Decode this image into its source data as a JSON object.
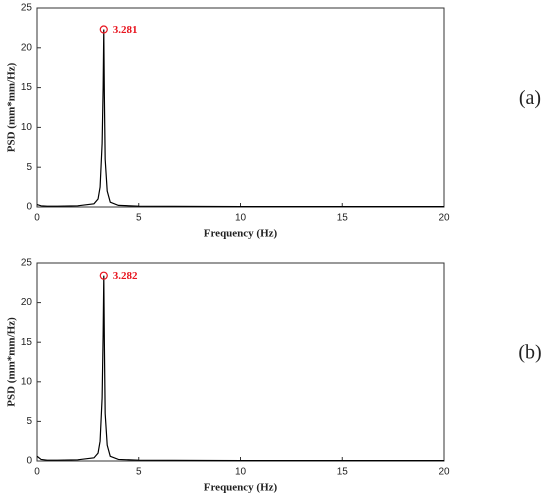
{
  "chart_data": [
    {
      "type": "line",
      "panel_label": "(a)",
      "xlabel": "Frequency (Hz)",
      "ylabel": "PSD (mm*mm/Hz)",
      "x": [
        0,
        0.2,
        0.5,
        1,
        2,
        2.8,
        3.0,
        3.1,
        3.2,
        3.25,
        3.281,
        3.31,
        3.35,
        3.45,
        3.6,
        4,
        5,
        10,
        15,
        20
      ],
      "values": [
        0.3,
        0.15,
        0.1,
        0.1,
        0.15,
        0.4,
        1,
        2.5,
        8,
        15,
        22.3,
        14,
        6,
        2,
        0.6,
        0.2,
        0.1,
        0.05,
        0.05,
        0.05
      ],
      "color": "#000000",
      "annotation": {
        "x": 3.281,
        "y": 22.3,
        "text": "3.281",
        "color": "#e8141e"
      },
      "xlim": [
        0,
        20
      ],
      "xticks": [
        0,
        5,
        10,
        15,
        20
      ],
      "ylim": [
        0,
        25
      ],
      "yticks": [
        0,
        5,
        10,
        15,
        20,
        25
      ]
    },
    {
      "type": "line",
      "panel_label": "(b)",
      "xlabel": "Frequency (Hz)",
      "ylabel": "PSD (mm*mm/Hz)",
      "x": [
        0,
        0.2,
        0.5,
        1,
        2,
        2.8,
        3.0,
        3.1,
        3.2,
        3.25,
        3.282,
        3.31,
        3.35,
        3.45,
        3.6,
        4,
        5,
        10,
        15,
        20
      ],
      "values": [
        0.6,
        0.2,
        0.1,
        0.1,
        0.15,
        0.4,
        1,
        2.5,
        8,
        16,
        23.4,
        15,
        6,
        2,
        0.6,
        0.2,
        0.1,
        0.05,
        0.05,
        0.05
      ],
      "color": "#000000",
      "annotation": {
        "x": 3.282,
        "y": 23.4,
        "text": "3.282",
        "color": "#e8141e"
      },
      "xlim": [
        0,
        20
      ],
      "xticks": [
        0,
        5,
        10,
        15,
        20
      ],
      "ylim": [
        0,
        25
      ],
      "yticks": [
        0,
        5,
        10,
        15,
        20,
        25
      ]
    }
  ]
}
